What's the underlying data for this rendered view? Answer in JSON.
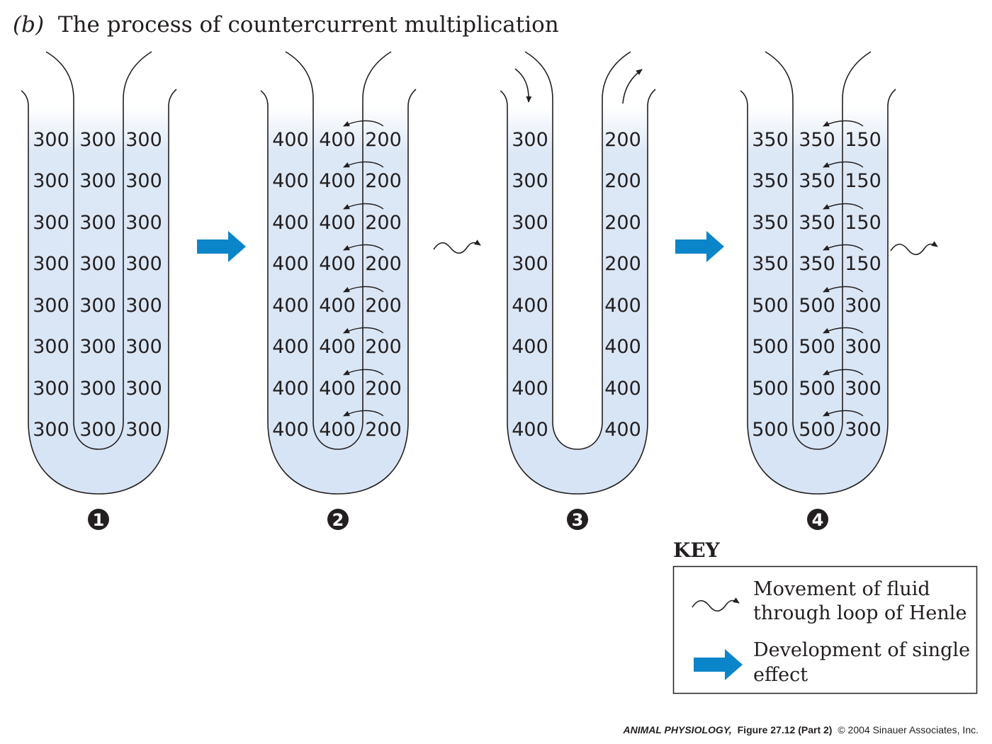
{
  "header": {
    "label": "(b)",
    "title": "The process of countercurrent multiplication"
  },
  "panels": [
    {
      "step": "1",
      "descending": [
        "300",
        "300",
        "300",
        "300",
        "300",
        "300",
        "300",
        "300"
      ],
      "middle": [
        "300",
        "300",
        "300",
        "300",
        "300",
        "300",
        "300",
        "300"
      ],
      "ascending": [
        "300",
        "300",
        "300",
        "300",
        "300",
        "300",
        "300",
        "300"
      ]
    },
    {
      "step": "2",
      "descending": [
        "400",
        "400",
        "400",
        "400",
        "400",
        "400",
        "400",
        "400"
      ],
      "middle": [
        "400",
        "400",
        "400",
        "400",
        "400",
        "400",
        "400",
        "400"
      ],
      "ascending": [
        "200",
        "200",
        "200",
        "200",
        "200",
        "200",
        "200",
        "200"
      ]
    },
    {
      "step": "3",
      "descending": [
        "300",
        "300",
        "300",
        "300",
        "400",
        "400",
        "400",
        "400"
      ],
      "middle": [],
      "ascending": [
        "200",
        "200",
        "200",
        "200",
        "400",
        "400",
        "400",
        "400"
      ]
    },
    {
      "step": "4",
      "descending": [
        "350",
        "350",
        "350",
        "350",
        "500",
        "500",
        "500",
        "500"
      ],
      "middle": [
        "350",
        "350",
        "350",
        "350",
        "500",
        "500",
        "500",
        "500"
      ],
      "ascending": [
        "150",
        "150",
        "150",
        "150",
        "300",
        "300",
        "300",
        "300"
      ]
    }
  ],
  "key": {
    "title": "KEY",
    "items": [
      {
        "icon": "squiggle-arrow-icon",
        "line1": "Movement of fluid",
        "line2": "through loop of Henle"
      },
      {
        "icon": "blue-arrow-icon",
        "line1": "Development of single",
        "line2": "effect"
      }
    ]
  },
  "credit": {
    "book": "ANIMAL PHYSIOLOGY,",
    "figure": "Figure 27.12 (Part 2)",
    "copyright": "© 2004 Sinauer Associates, Inc."
  },
  "colors": {
    "fluid": "#dde8f6",
    "outline": "#231f20",
    "arrow": "#0b85c9"
  }
}
